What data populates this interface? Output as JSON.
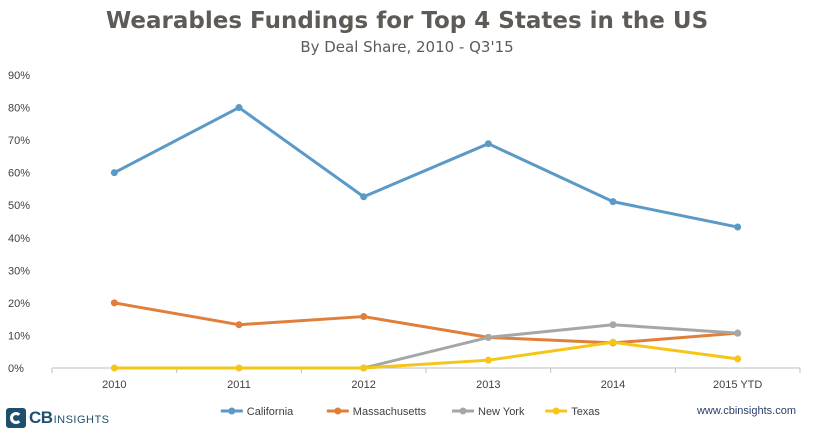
{
  "title": "Wearables Fundings for Top 4 States in the US",
  "subtitle": "By Deal Share, 2010 - Q3'15",
  "brand": {
    "logo_text": "CB",
    "logo_suffix": "INSIGHTS",
    "website": "www.cbinsights.com"
  },
  "chart_data": {
    "type": "line",
    "categories": [
      "2010",
      "2011",
      "2012",
      "2013",
      "2014",
      "2015 YTD"
    ],
    "y_ticks": [
      "0%",
      "10%",
      "20%",
      "30%",
      "40%",
      "50%",
      "60%",
      "70%",
      "80%",
      "90%"
    ],
    "ylim": [
      0,
      90
    ],
    "grid": false,
    "legend_position": "bottom",
    "series": [
      {
        "name": "California",
        "color": "#5b9ac6",
        "values": [
          60,
          80,
          52.6,
          68.9,
          51.1,
          43.3
        ]
      },
      {
        "name": "Massachusetts",
        "color": "#e07f3a",
        "values": [
          20,
          13.3,
          15.8,
          9.4,
          7.7,
          10.7
        ]
      },
      {
        "name": "New York",
        "color": "#a6a6a6",
        "values": [
          null,
          null,
          0,
          9.4,
          13.3,
          10.7
        ]
      },
      {
        "name": "Texas",
        "color": "#f5c518",
        "values": [
          0,
          0,
          0,
          2.4,
          7.9,
          2.8
        ]
      }
    ]
  }
}
